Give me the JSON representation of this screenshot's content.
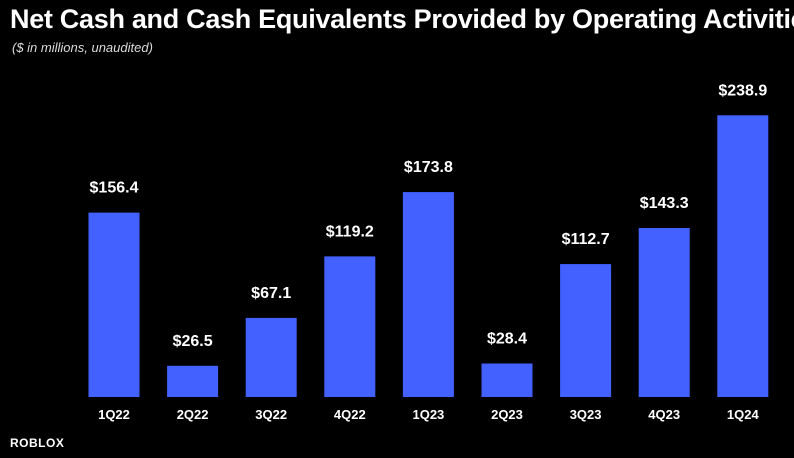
{
  "chart_data": {
    "type": "bar",
    "title": "Net Cash and Cash Equivalents Provided by Operating Activities",
    "subtitle": "($ in millions, unaudited)",
    "categories": [
      "1Q22",
      "2Q22",
      "3Q22",
      "4Q22",
      "1Q23",
      "2Q23",
      "3Q23",
      "4Q23",
      "1Q24"
    ],
    "values": [
      156.4,
      26.5,
      67.1,
      119.2,
      173.8,
      28.4,
      112.7,
      143.3,
      238.9
    ],
    "value_labels": [
      "$156.4",
      "$26.5",
      "$67.1",
      "$119.2",
      "$173.8",
      "$28.4",
      "$112.7",
      "$143.3",
      "$238.9"
    ],
    "xlabel": "",
    "ylabel": "",
    "ylim": [
      0,
      240
    ],
    "grid": false,
    "legend": "none",
    "bar_color": "#4261FF",
    "background": "#000000"
  },
  "branding": {
    "logo_text": "ROBLOX"
  }
}
